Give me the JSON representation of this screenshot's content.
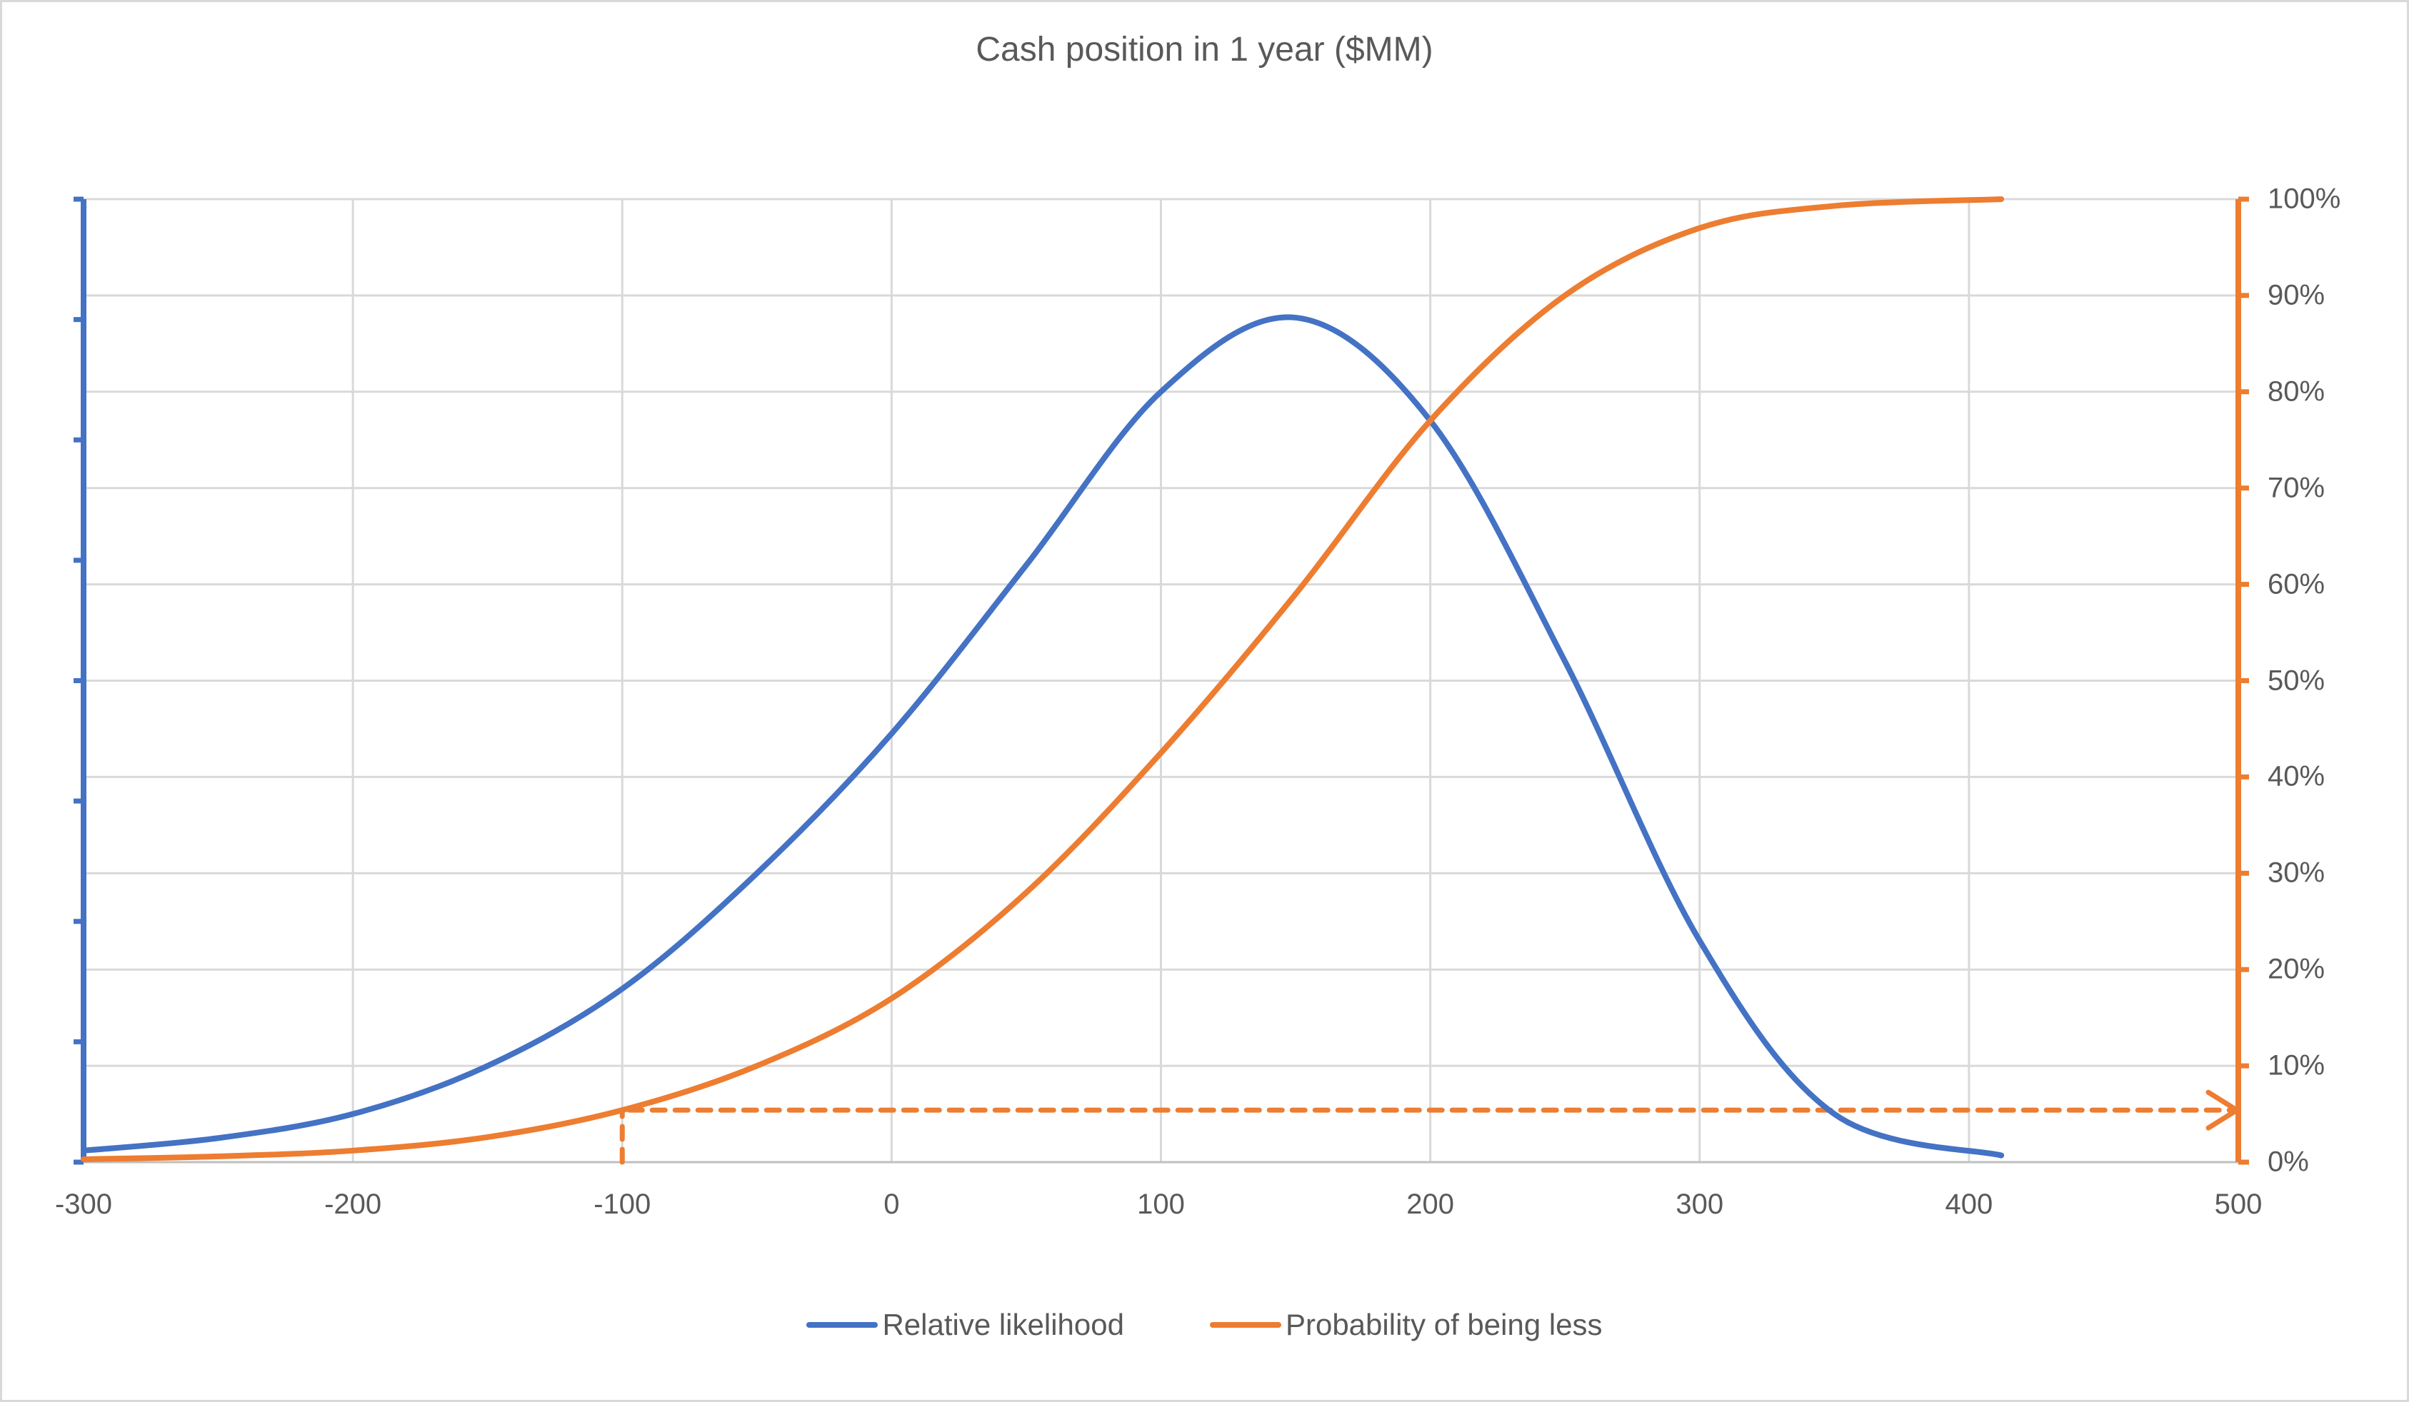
{
  "chart_data": {
    "type": "line",
    "title": "Cash position in 1 year ($MM)",
    "xlabel": "",
    "ylabel_left": "",
    "ylabel_right": "",
    "xlim": [
      -300,
      500
    ],
    "x_ticks": [
      "-300",
      "-200",
      "-100",
      "0",
      "100",
      "200",
      "300",
      "400",
      "500"
    ],
    "y_right_ticks": [
      "0%",
      "10%",
      "20%",
      "30%",
      "40%",
      "50%",
      "60%",
      "70%",
      "80%",
      "90%",
      "100%"
    ],
    "y_right_lim": [
      0,
      100
    ],
    "y_left_ticks_count": 9,
    "y_left_labels": "none",
    "grid": true,
    "legend_position": "bottom",
    "x": [
      -300,
      -250,
      -200,
      -150,
      -100,
      -50,
      0,
      50,
      100,
      150,
      200,
      250,
      300,
      350,
      412
    ],
    "series": [
      {
        "name": "Relative likelihood",
        "axis": "left",
        "color": "#4472C4",
        "values": [
          0.012,
          0.025,
          0.05,
          0.1,
          0.18,
          0.3,
          0.445,
          0.62,
          0.8,
          0.877,
          0.77,
          0.52,
          0.23,
          0.05,
          0.007
        ]
      },
      {
        "name": "Probability of being less",
        "axis": "right",
        "color": "#ED7D31",
        "values": [
          0.3,
          0.6,
          1.2,
          2.6,
          5.4,
          10.0,
          17.0,
          28.0,
          42.5,
          59.0,
          77.0,
          90.0,
          97.0,
          99.3,
          100.0
        ]
      }
    ],
    "annotations": [
      {
        "type": "dashed-arrow",
        "color": "#ED7D31",
        "description": "Vertical dashed line at x=-100 up to curve, then horizontal dashed arrow to right axis at ~5.4%",
        "x": -100,
        "y_percent": 5.4
      }
    ]
  },
  "legend": {
    "items": [
      {
        "label": "Relative likelihood",
        "color": "#4472C4"
      },
      {
        "label": "Probability of being less",
        "color": "#ED7D31"
      }
    ]
  },
  "colors": {
    "text": "#595959",
    "grid": "#d9d9d9",
    "axis": "#bfbfbf",
    "blue": "#4472C4",
    "orange": "#ED7D31"
  }
}
